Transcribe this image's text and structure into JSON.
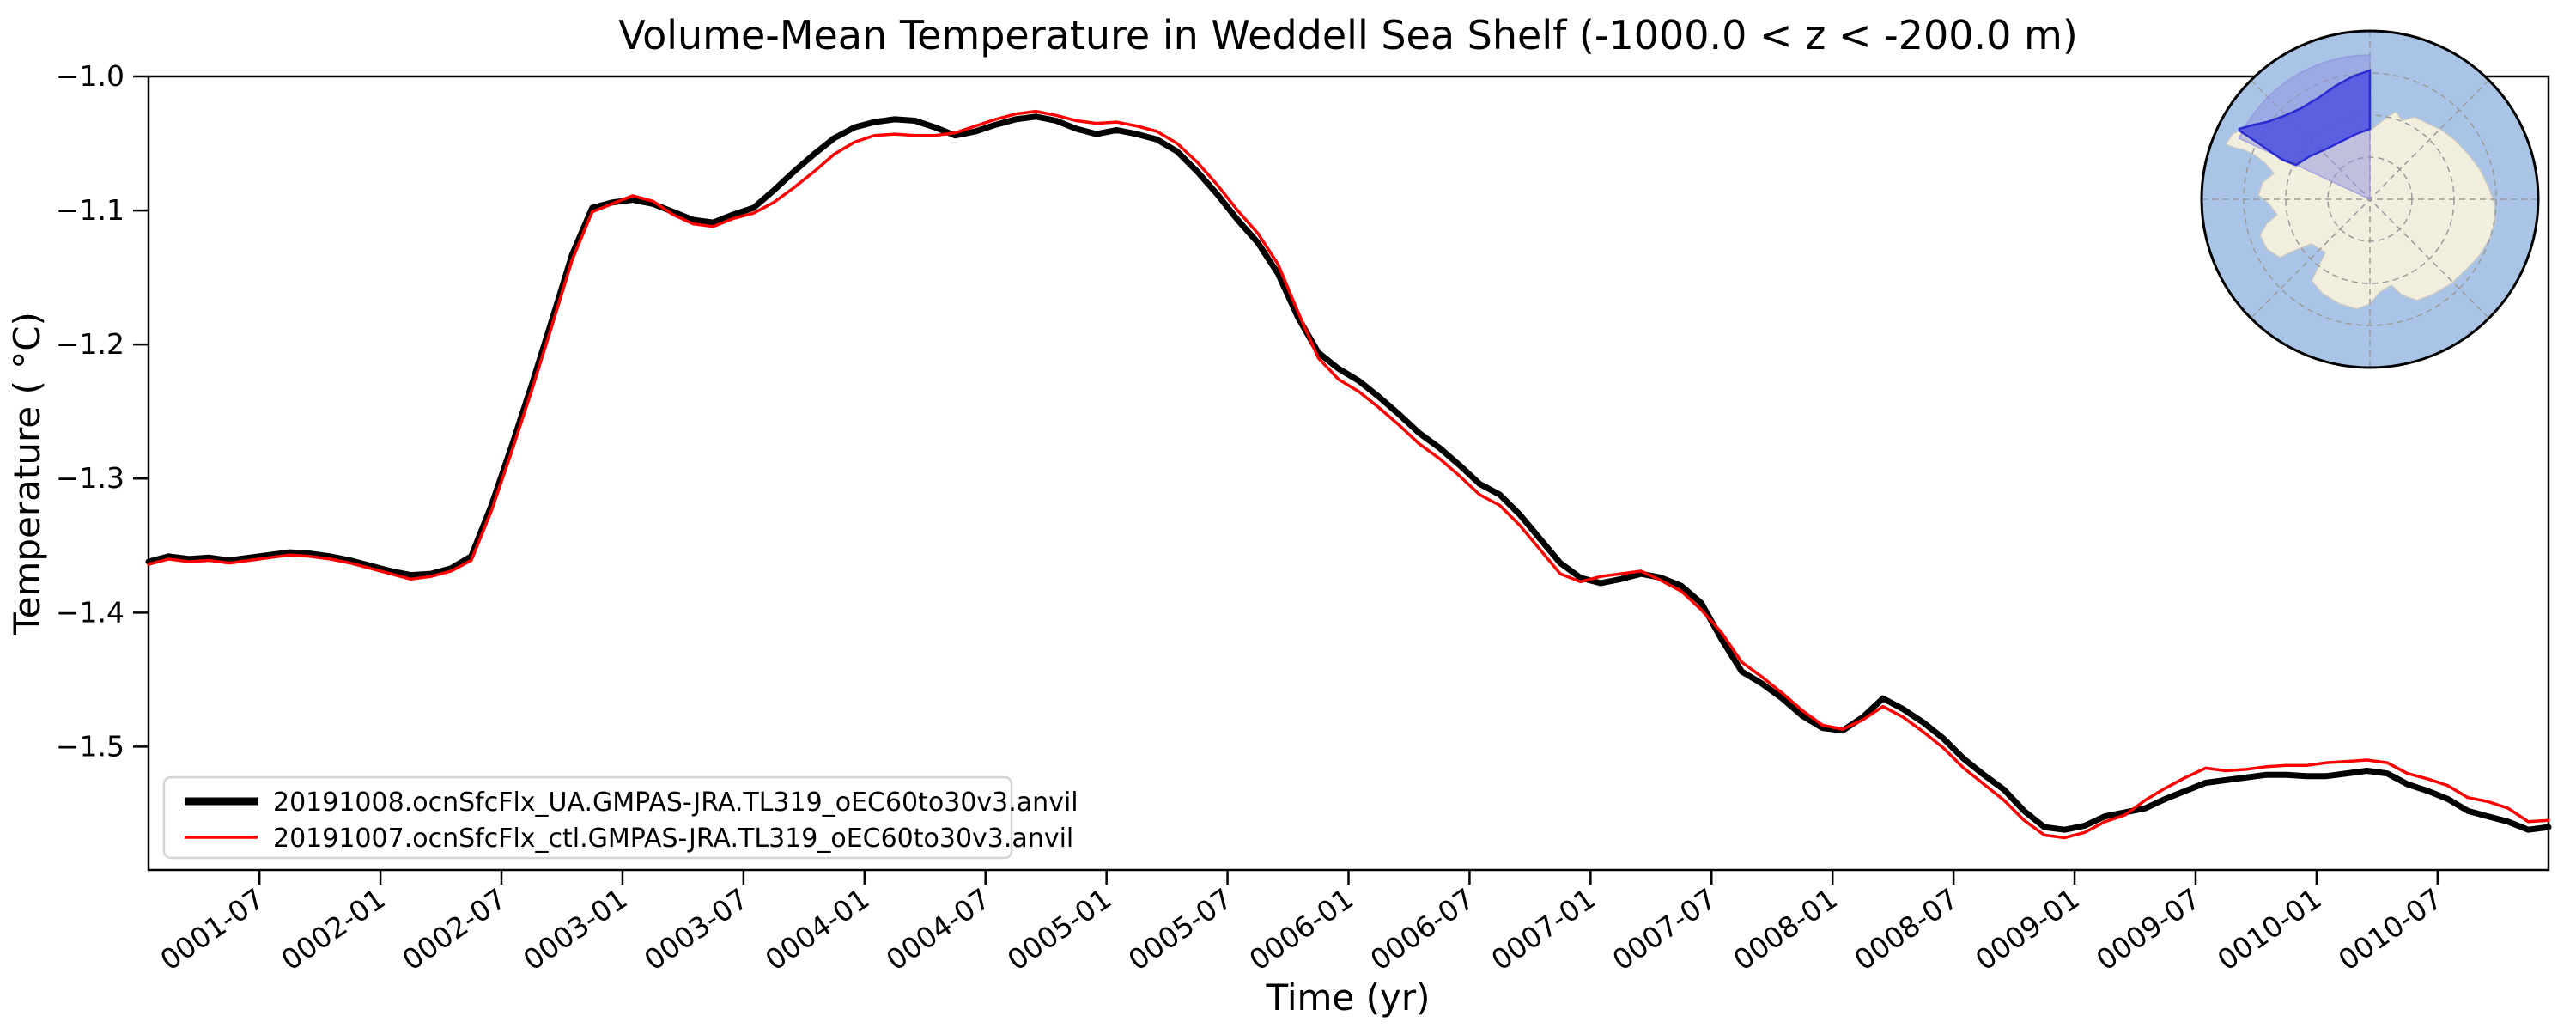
{
  "title": "Volume-Mean Temperature in Weddell Sea Shelf (-1000.0 < z < -200.0 m)",
  "axes": {
    "xlabel": "Time (yr)",
    "ylabel": "Temperature ( °C)"
  },
  "legend": {
    "entries": [
      {
        "label": "20191008.ocnSfcFlx_UA.GMPAS-JRA.TL319_oEC60to30v3.anvil",
        "color": "#000000",
        "line_width": 9
      },
      {
        "label": "20191007.ocnSfcFlx_ctl.GMPAS-JRA.TL319_oEC60to30v3.anvil",
        "color": "#ff0000",
        "line_width": 3.5
      }
    ]
  },
  "chart_data": {
    "type": "line",
    "title": "Volume-Mean Temperature in Weddell Sea Shelf (-1000.0 < z < -200.0 m)",
    "xlabel": "Time (yr)",
    "ylabel": "Temperature ( °C)",
    "grid": false,
    "legend_position": "lower left",
    "n_months": 120,
    "x_start": "0001-01",
    "x_end": "0010-12",
    "ylim": [
      -1.592,
      -1.0
    ],
    "x_ticks": {
      "first_month_index": 5.5,
      "step": 6,
      "labels": [
        "0001-07",
        "0002-01",
        "0002-07",
        "0003-01",
        "0003-07",
        "0004-01",
        "0004-07",
        "0005-01",
        "0005-07",
        "0006-01",
        "0006-07",
        "0007-01",
        "0007-07",
        "0008-01",
        "0008-07",
        "0009-01",
        "0009-07",
        "0010-01",
        "0010-07"
      ]
    },
    "y_ticks": {
      "values": [
        -1.0,
        -1.1,
        -1.2,
        -1.3,
        -1.4,
        -1.5
      ],
      "labels": [
        "−1.0",
        "−1.1",
        "−1.2",
        "−1.3",
        "−1.4",
        "−1.5"
      ]
    },
    "series": [
      {
        "name": "20191008.ocnSfcFlx_UA.GMPAS-JRA.TL319_oEC60to30v3.anvil",
        "color": "#000000",
        "line_width": 7,
        "values": [
          -1.362,
          -1.358,
          -1.36,
          -1.359,
          -1.361,
          -1.359,
          -1.357,
          -1.355,
          -1.356,
          -1.358,
          -1.361,
          -1.365,
          -1.369,
          -1.372,
          -1.371,
          -1.367,
          -1.358,
          -1.32,
          -1.276,
          -1.23,
          -1.182,
          -1.133,
          -1.098,
          -1.094,
          -1.092,
          -1.095,
          -1.101,
          -1.107,
          -1.109,
          -1.103,
          -1.098,
          -1.085,
          -1.071,
          -1.058,
          -1.046,
          -1.038,
          -1.034,
          -1.032,
          -1.033,
          -1.038,
          -1.044,
          -1.041,
          -1.036,
          -1.032,
          -1.03,
          -1.033,
          -1.039,
          -1.043,
          -1.04,
          -1.043,
          -1.047,
          -1.056,
          -1.071,
          -1.088,
          -1.107,
          -1.124,
          -1.147,
          -1.18,
          -1.206,
          -1.218,
          -1.227,
          -1.239,
          -1.252,
          -1.266,
          -1.277,
          -1.29,
          -1.304,
          -1.312,
          -1.327,
          -1.345,
          -1.363,
          -1.374,
          -1.378,
          -1.375,
          -1.371,
          -1.374,
          -1.38,
          -1.393,
          -1.42,
          -1.444,
          -1.453,
          -1.464,
          -1.477,
          -1.486,
          -1.488,
          -1.478,
          -1.464,
          -1.472,
          -1.482,
          -1.494,
          -1.509,
          -1.521,
          -1.532,
          -1.548,
          -1.56,
          -1.562,
          -1.559,
          -1.552,
          -1.549,
          -1.546,
          -1.539,
          -1.533,
          -1.527,
          -1.525,
          -1.523,
          -1.521,
          -1.521,
          -1.522,
          -1.522,
          -1.52,
          -1.518,
          -1.52,
          -1.528,
          -1.533,
          -1.539,
          -1.548,
          -1.552,
          -1.556,
          -1.562,
          -1.56
        ]
      },
      {
        "name": "20191007.ocnSfcFlx_ctl.GMPAS-JRA.TL319_oEC60to30v3.anvil",
        "color": "#ff0000",
        "line_width": 3.5,
        "values": [
          -1.364,
          -1.36,
          -1.362,
          -1.361,
          -1.363,
          -1.361,
          -1.359,
          -1.357,
          -1.358,
          -1.36,
          -1.363,
          -1.367,
          -1.371,
          -1.375,
          -1.373,
          -1.369,
          -1.361,
          -1.324,
          -1.28,
          -1.234,
          -1.186,
          -1.137,
          -1.101,
          -1.095,
          -1.089,
          -1.093,
          -1.103,
          -1.11,
          -1.112,
          -1.106,
          -1.102,
          -1.094,
          -1.083,
          -1.071,
          -1.058,
          -1.049,
          -1.044,
          -1.043,
          -1.044,
          -1.044,
          -1.042,
          -1.037,
          -1.032,
          -1.028,
          -1.026,
          -1.029,
          -1.033,
          -1.035,
          -1.034,
          -1.037,
          -1.041,
          -1.05,
          -1.064,
          -1.081,
          -1.1,
          -1.117,
          -1.14,
          -1.176,
          -1.21,
          -1.226,
          -1.235,
          -1.247,
          -1.26,
          -1.274,
          -1.285,
          -1.298,
          -1.312,
          -1.32,
          -1.335,
          -1.353,
          -1.371,
          -1.377,
          -1.373,
          -1.371,
          -1.369,
          -1.376,
          -1.384,
          -1.398,
          -1.415,
          -1.437,
          -1.448,
          -1.46,
          -1.473,
          -1.484,
          -1.487,
          -1.48,
          -1.47,
          -1.478,
          -1.489,
          -1.501,
          -1.516,
          -1.528,
          -1.54,
          -1.555,
          -1.566,
          -1.568,
          -1.564,
          -1.556,
          -1.551,
          -1.54,
          -1.531,
          -1.523,
          -1.516,
          -1.518,
          -1.517,
          -1.515,
          -1.514,
          -1.514,
          -1.512,
          -1.511,
          -1.51,
          -1.512,
          -1.52,
          -1.524,
          -1.529,
          -1.538,
          -1.541,
          -1.546,
          -1.556,
          -1.555
        ]
      }
    ]
  },
  "inset_map": {
    "description": "South polar stereographic inset highlighting Weddell Sea shelf region",
    "colors": {
      "ocean": "#a9c4e6",
      "land": "#f1eedd",
      "land_edge": "#c8c8c8",
      "graticule": "#9a9a9a",
      "region_wedge": "#8f8fe0",
      "region_shelf": "#4a4ede",
      "region_shelf_edge": "#2b2bd0",
      "border": "#000000"
    }
  }
}
